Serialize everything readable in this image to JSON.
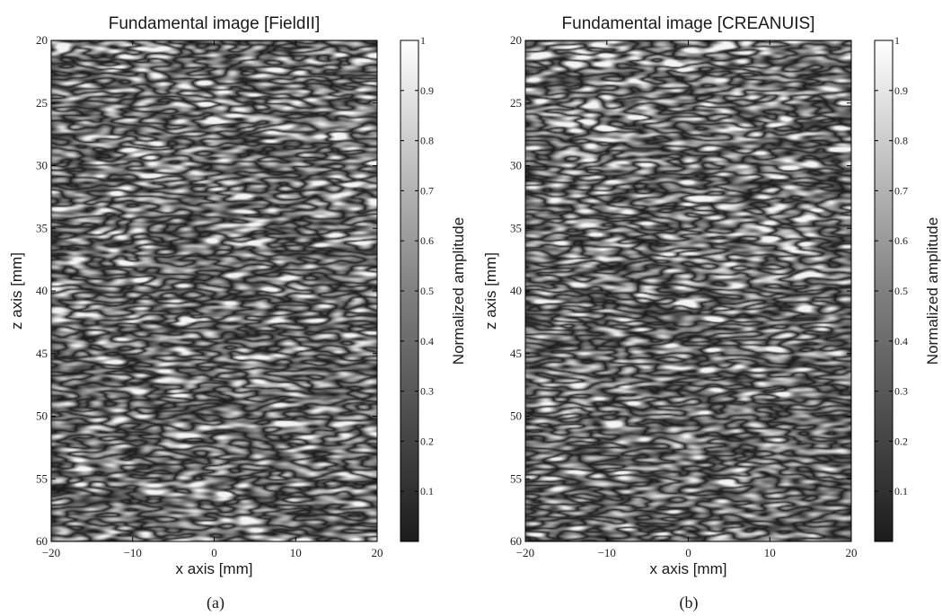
{
  "chart_data": [
    {
      "type": "heatmap",
      "title": "Fundamental image [FieldII]",
      "xlabel": "x axis [mm]",
      "ylabel": "z axis [mm]",
      "xlim": [
        -20,
        20
      ],
      "ylim": [
        20,
        60
      ],
      "y_reversed": true,
      "xticks": [
        -20,
        -10,
        0,
        10,
        20
      ],
      "xtick_labels": [
        "−20",
        "−10",
        "0",
        "10",
        "20"
      ],
      "yticks": [
        20,
        25,
        30,
        35,
        40,
        45,
        50,
        55,
        60
      ],
      "ytick_labels": [
        "20",
        "25",
        "30",
        "35",
        "40",
        "45",
        "50",
        "55",
        "60"
      ],
      "colormap": "gray",
      "colorbar": {
        "label": "Normalized amplitude",
        "range": [
          0,
          1
        ],
        "ticks": [
          0.1,
          0.2,
          0.3,
          0.4,
          0.5,
          0.6,
          0.7,
          0.8,
          0.9,
          1
        ],
        "tick_labels": [
          "0.1",
          "0.2",
          "0.3",
          "0.4",
          "0.5",
          "0.6",
          "0.7",
          "0.8",
          "0.9",
          "1"
        ]
      },
      "caption": "(a)"
    },
    {
      "type": "heatmap",
      "title": "Fundamental image [CREANUIS]",
      "xlabel": "x axis [mm]",
      "ylabel": "z axis [mm]",
      "xlim": [
        -20,
        20
      ],
      "ylim": [
        20,
        60
      ],
      "y_reversed": true,
      "xticks": [
        -20,
        -10,
        0,
        10,
        20
      ],
      "xtick_labels": [
        "−20",
        "−10",
        "0",
        "10",
        "20"
      ],
      "yticks": [
        20,
        25,
        30,
        35,
        40,
        45,
        50,
        55,
        60
      ],
      "ytick_labels": [
        "20",
        "25",
        "30",
        "35",
        "40",
        "45",
        "50",
        "55",
        "60"
      ],
      "colormap": "gray",
      "colorbar": {
        "label": "Normalized amplitude",
        "range": [
          0,
          1
        ],
        "ticks": [
          0.1,
          0.2,
          0.3,
          0.4,
          0.5,
          0.6,
          0.7,
          0.8,
          0.9,
          1
        ],
        "tick_labels": [
          "0.1",
          "0.2",
          "0.3",
          "0.4",
          "0.5",
          "0.6",
          "0.7",
          "0.8",
          "0.9",
          "1"
        ]
      },
      "caption": "(b)"
    }
  ]
}
